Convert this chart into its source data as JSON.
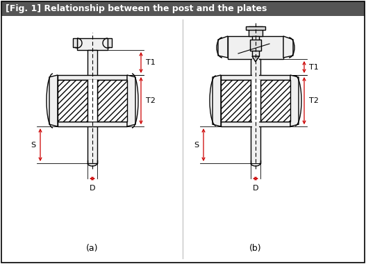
{
  "title": "[Fig. 1] Relationship between the post and the plates",
  "title_bg": "#555555",
  "title_color": "#ffffff",
  "bg_color": "#ffffff",
  "border_color": "#000000",
  "line_color": "#000000",
  "red_color": "#cc0000",
  "label_a": "(a)",
  "label_b": "(b)",
  "dim_T1": "T1",
  "dim_T2": "T2",
  "dim_S": "S",
  "dim_D": "D",
  "fig_width": 5.27,
  "fig_height": 3.8,
  "dpi": 100
}
